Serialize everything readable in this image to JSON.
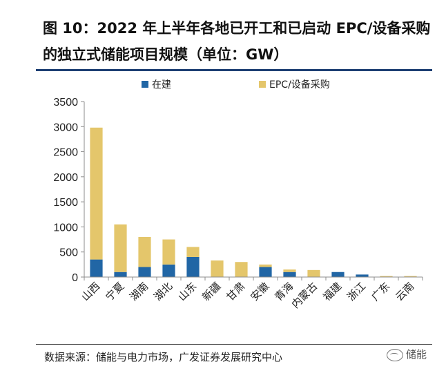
{
  "figure": {
    "title": "图 10：2022 年上半年各地已开工和已启动 EPC/设备采购的独立式储能项目规模（单位：GW）",
    "source": "数据来源：储能与电力市场，广发证券发展研究中心",
    "watermark": "储能"
  },
  "chart_data": {
    "type": "bar",
    "stacked": true,
    "categories": [
      "山西",
      "宁夏",
      "湖南",
      "湖北",
      "山东",
      "新疆",
      "甘肃",
      "安徽",
      "青海",
      "内蒙古",
      "福建",
      "浙江",
      "广东",
      "云南"
    ],
    "series": [
      {
        "name": "在建",
        "color": "#2166a5",
        "values": [
          350,
          100,
          200,
          250,
          400,
          0,
          0,
          200,
          100,
          0,
          100,
          50,
          0,
          0
        ]
      },
      {
        "name": "EPC/设备采购",
        "color": "#e4c66b",
        "values": [
          2630,
          950,
          600,
          500,
          200,
          330,
          300,
          50,
          50,
          140,
          0,
          0,
          20,
          20
        ]
      }
    ],
    "yticks": [
      0,
      500,
      1000,
      1500,
      2000,
      2500,
      3000,
      3500
    ],
    "ylim": [
      0,
      3500
    ],
    "legend": "top",
    "grid": false
  }
}
